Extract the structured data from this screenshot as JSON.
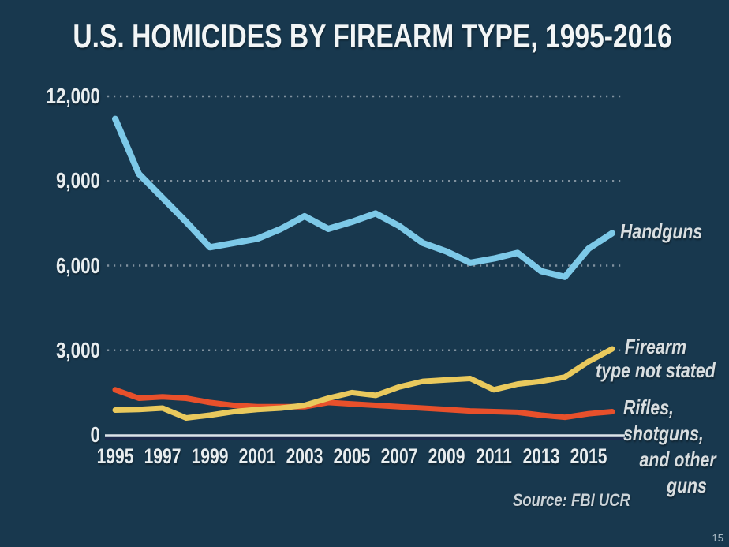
{
  "page": {
    "background_color": "#18384E",
    "page_number": "15"
  },
  "chart_data": {
    "type": "line",
    "title": "U.S. HOMICIDES BY FIREARM TYPE, 1995-2016",
    "source": "Source: FBI UCR",
    "x": [
      1995,
      1996,
      1997,
      1998,
      1999,
      2000,
      2001,
      2002,
      2003,
      2004,
      2005,
      2006,
      2007,
      2008,
      2009,
      2010,
      2011,
      2012,
      2013,
      2014,
      2015,
      2016
    ],
    "x_tick_labels": [
      "1995",
      "1997",
      "1999",
      "2001",
      "2003",
      "2005",
      "2007",
      "2009",
      "2011",
      "2013",
      "2015"
    ],
    "x_tick_years": [
      1995,
      1997,
      1999,
      2001,
      2003,
      2005,
      2007,
      2009,
      2011,
      2013,
      2015
    ],
    "y_ticks": [
      0,
      3000,
      6000,
      9000,
      12000
    ],
    "y_tick_labels": [
      "0",
      "3,000",
      "6,000",
      "9,000",
      "12,000"
    ],
    "ylim": [
      0,
      12000
    ],
    "grid": "dotted horizontal gridlines at 3000/6000/9000/12000, solid axis at 0",
    "legend_position": "right-of-line annotations",
    "series": [
      {
        "name": "Rifles, shotguns, and other guns",
        "color": "#E8502B",
        "values": [
          1600,
          1300,
          1350,
          1300,
          1150,
          1050,
          1000,
          1000,
          1000,
          1150,
          1100,
          1050,
          1000,
          950,
          900,
          850,
          825,
          800,
          700,
          625,
          750,
          825
        ]
      },
      {
        "name": "Firearm type not stated",
        "color": "#E9C95D",
        "values": [
          880,
          900,
          950,
          600,
          700,
          825,
          900,
          950,
          1050,
          1300,
          1500,
          1400,
          1700,
          1900,
          1950,
          2000,
          1600,
          1800,
          1900,
          2050,
          2600,
          3050
        ]
      },
      {
        "name": "Handguns",
        "color": "#7DC9E8",
        "values": [
          11200,
          9250,
          8400,
          7550,
          6650,
          6800,
          6950,
          7300,
          7750,
          7300,
          7550,
          7850,
          7400,
          6800,
          6500,
          6100,
          6250,
          6450,
          5800,
          5600,
          6600,
          7150
        ]
      }
    ],
    "style": {
      "gridline_color": "#9AA8B2",
      "axis_line_color": "#DCE3E8",
      "axis_shadow_color": "#1C2B4E",
      "text_color": "#E8EDEF"
    }
  },
  "annotations": {
    "handguns": "Handguns",
    "not_stated_line1": "Firearm",
    "not_stated_line2": "type not stated",
    "rifles_line1": "Rifles,",
    "rifles_line2": "shotguns,",
    "rifles_line3": "and other",
    "rifles_line4": "guns"
  }
}
